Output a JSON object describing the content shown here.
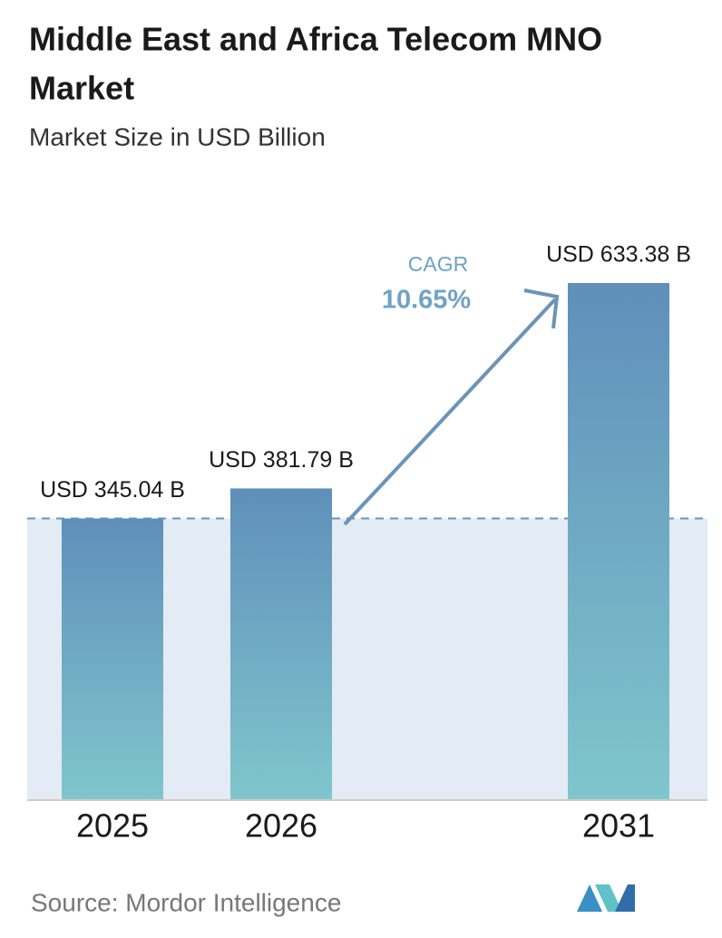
{
  "chart_data": {
    "type": "bar",
    "title": "Middle East and Africa Telecom MNO Market",
    "subtitle": "Market Size in USD Billion",
    "categories": [
      "2025",
      "2026",
      "2031"
    ],
    "values": [
      345.04,
      381.79,
      633.38
    ],
    "value_labels": [
      "USD 345.04 B",
      "USD 381.79 B",
      "USD 633.38 B"
    ],
    "annotations": {
      "cagr_label": "CAGR",
      "cagr_value": "10.65%"
    },
    "source": "Source:  Mordor Intelligence"
  }
}
